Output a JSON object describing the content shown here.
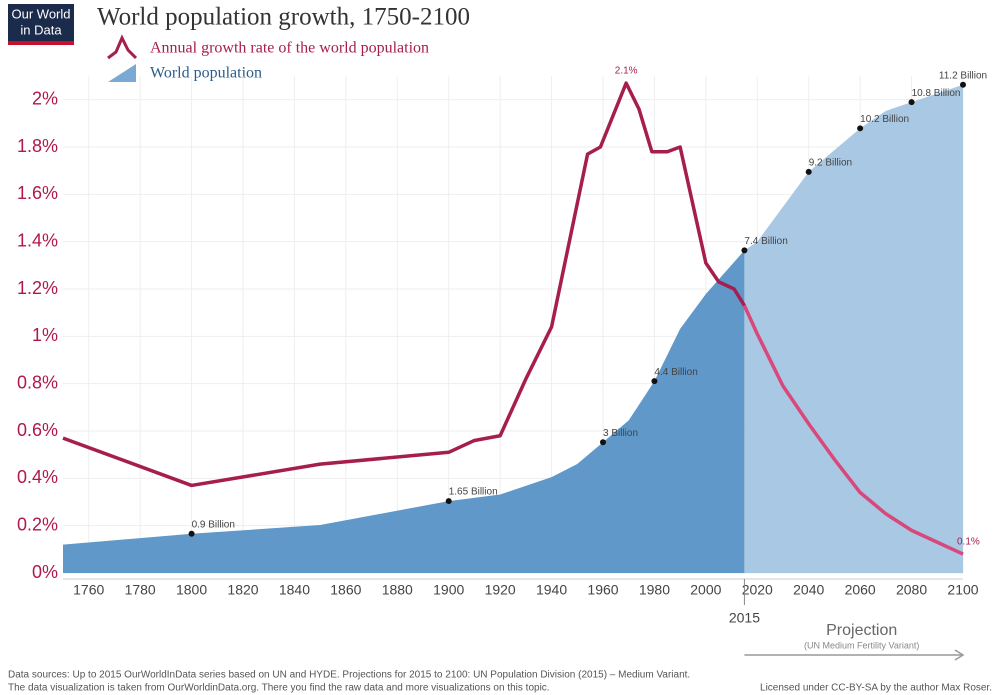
{
  "chart_data": {
    "type": "line",
    "title": "World population growth, 1750-2100",
    "logo": [
      "Our World",
      "in Data"
    ],
    "xlim": [
      1750,
      2100
    ],
    "xticks": [
      1760,
      1780,
      1800,
      1820,
      1840,
      1860,
      1880,
      1900,
      1920,
      1940,
      1960,
      1980,
      2000,
      2020,
      2040,
      2060,
      2080,
      2100
    ],
    "ylim": [
      0,
      2.1
    ],
    "yticks": [
      {
        "value": 0,
        "label": "0%"
      },
      {
        "value": 0.2,
        "label": "0.2%"
      },
      {
        "value": 0.4,
        "label": "0.4%"
      },
      {
        "value": 0.6,
        "label": "0.6%"
      },
      {
        "value": 0.8,
        "label": "0.8%"
      },
      {
        "value": 1,
        "label": "1%"
      },
      {
        "value": 1.2,
        "label": "1.2%"
      },
      {
        "value": 1.4,
        "label": "1.4%"
      },
      {
        "value": 1.6,
        "label": "1.6%"
      },
      {
        "value": 1.8,
        "label": "1.8%"
      },
      {
        "value": 2,
        "label": "2%"
      }
    ],
    "y2lim": [
      0,
      11.4
    ],
    "grid": true,
    "projection": {
      "start": 2015,
      "label": "Projection",
      "sublabel": "(UN Medium Fertility Variant)"
    },
    "series": [
      {
        "name": "Annual growth rate of the world population",
        "type": "line",
        "axis": "y",
        "color": "#a61e4d",
        "projection_color": "#d9487a",
        "x": [
          1750,
          1800,
          1850,
          1900,
          1910,
          1920,
          1930,
          1940,
          1954,
          1959,
          1969,
          1974,
          1979,
          1985,
          1990,
          2000,
          2005,
          2011,
          2015,
          2020,
          2030,
          2040,
          2050,
          2060,
          2070,
          2080,
          2090,
          2100
        ],
        "values": [
          0.57,
          0.37,
          0.46,
          0.51,
          0.56,
          0.58,
          0.82,
          1.04,
          1.77,
          1.8,
          2.07,
          1.96,
          1.78,
          1.78,
          1.8,
          1.31,
          1.23,
          1.2,
          1.13,
          1.01,
          0.79,
          0.63,
          0.48,
          0.34,
          0.25,
          0.18,
          0.13,
          0.08
        ],
        "value_labels": [
          null,
          null,
          null,
          null,
          null,
          null,
          null,
          null,
          null,
          null,
          "2.1%",
          null,
          null,
          null,
          null,
          null,
          null,
          null,
          null,
          null,
          null,
          null,
          null,
          null,
          null,
          null,
          null,
          "0.1%"
        ]
      },
      {
        "name": "World population",
        "type": "area",
        "axis": "y2",
        "color": "#5f98c9",
        "projection_color": "#a9c8e3",
        "x": [
          1750,
          1800,
          1850,
          1900,
          1920,
          1940,
          1950,
          1960,
          1970,
          1980,
          1990,
          2000,
          2015,
          2020,
          2030,
          2040,
          2050,
          2060,
          2070,
          2080,
          2090,
          2100
        ],
        "values": [
          0.65,
          0.9,
          1.1,
          1.65,
          1.8,
          2.2,
          2.5,
          3,
          3.5,
          4.4,
          5.6,
          6.4,
          7.4,
          7.6,
          8.4,
          9.2,
          9.7,
          10.2,
          10.6,
          10.8,
          11,
          11.2
        ],
        "value_labels": [
          null,
          "0.9 Billion",
          null,
          "1.65 Billion",
          null,
          null,
          null,
          "3 Billion",
          null,
          "4.4 Billion",
          null,
          null,
          "7.4 Billion",
          null,
          null,
          "9.2 Billion",
          null,
          "10.2 Billion",
          null,
          "10.8 Billion",
          null,
          "11.2 Billion"
        ]
      }
    ],
    "sources": [
      "Data sources:  Up to 2015 OurWorldInData series based on UN and HYDE. Projections for 2015 to 2100: UN Population Division (2015) – Medium Variant.",
      "The data visualization is taken from OurWorldinData.org. There you find the raw data and more visualizations on this topic."
    ],
    "license": "Licensed under CC-BY-SA by the author Max Roser."
  }
}
